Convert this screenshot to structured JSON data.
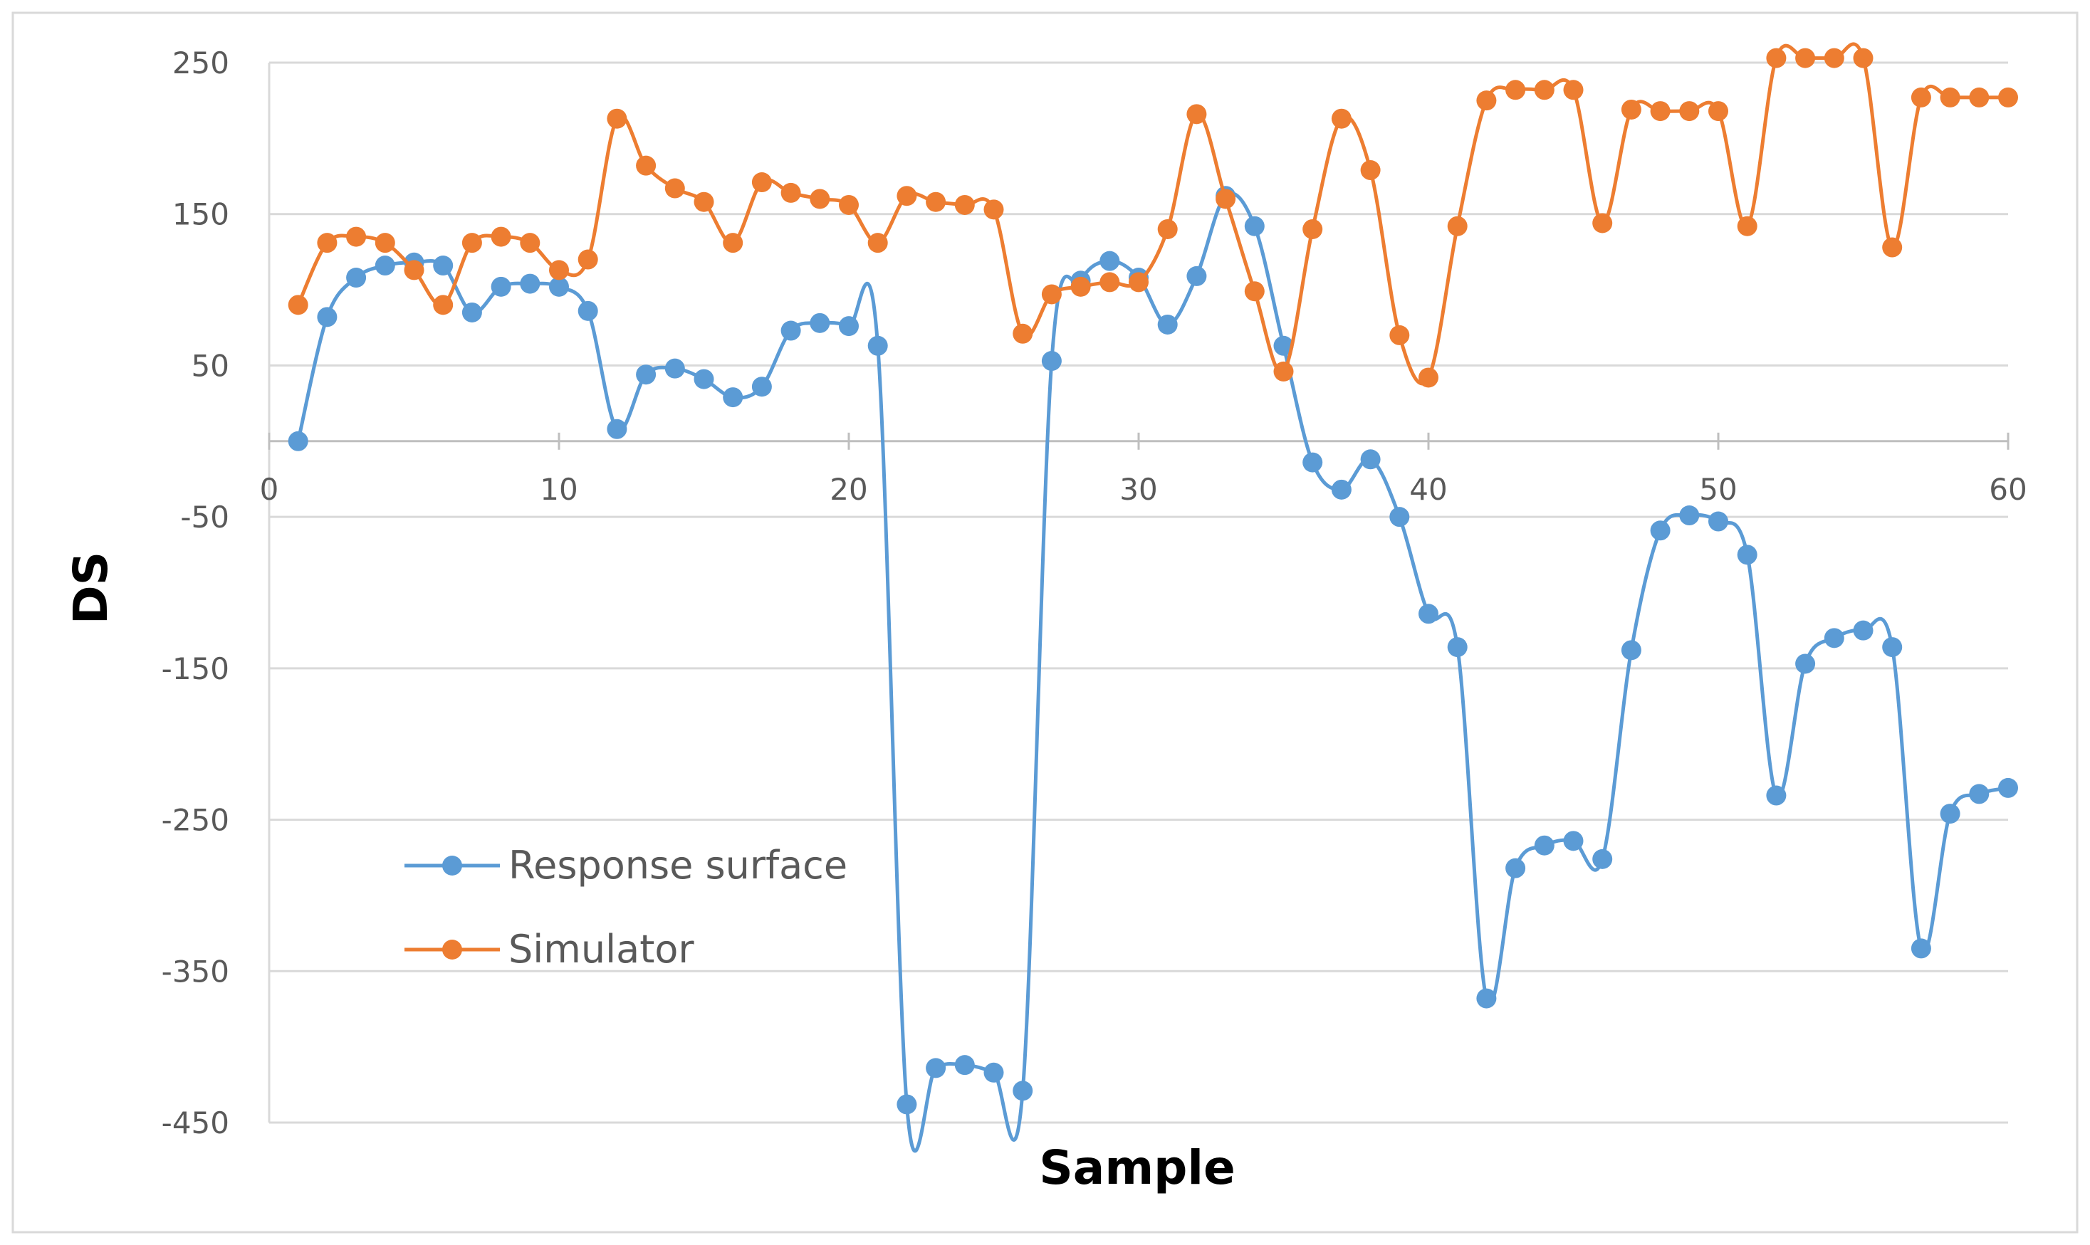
{
  "chart_data": {
    "type": "line",
    "title": "",
    "xlabel": "Sample",
    "ylabel": "DS",
    "xlim": [
      0,
      60
    ],
    "ylim": [
      -450,
      250
    ],
    "x_ticks": [
      "0",
      "10",
      "20",
      "30",
      "40",
      "50",
      "60"
    ],
    "y_ticks": [
      "250",
      "150",
      "50",
      "-50",
      "-150",
      "-250",
      "-350",
      "-450"
    ],
    "grid": "horizontal",
    "legend_position": "lower-left inside plot",
    "x": [
      1,
      2,
      3,
      4,
      5,
      6,
      7,
      8,
      9,
      10,
      11,
      12,
      13,
      14,
      15,
      16,
      17,
      18,
      19,
      20,
      21,
      22,
      23,
      24,
      25,
      26,
      27,
      28,
      29,
      30,
      31,
      32,
      33,
      34,
      35,
      36,
      37,
      38,
      39,
      40,
      41,
      42,
      43,
      44,
      45,
      46,
      47,
      48,
      49,
      50,
      51,
      52,
      53,
      54,
      55,
      56,
      57,
      58,
      59,
      60
    ],
    "series": [
      {
        "name": "Response surface",
        "color": "#5b9bd5",
        "values": [
          0,
          82,
          108,
          116,
          118,
          116,
          85,
          102,
          104,
          102,
          86,
          8,
          44,
          48,
          41,
          29,
          36,
          73,
          78,
          76,
          63,
          -438,
          -414,
          -412,
          -417,
          -429,
          53,
          106,
          119,
          108,
          77,
          109,
          162,
          142,
          63,
          -14,
          -32,
          -12,
          -50,
          -114,
          -136,
          -368,
          -282,
          -267,
          -264,
          -276,
          -138,
          -59,
          -49,
          -53,
          -75,
          -234,
          -147,
          -130,
          -125,
          -136,
          -335,
          -246,
          -233,
          -229
        ]
      },
      {
        "name": "Simulator",
        "color": "#ed7d31",
        "values": [
          90,
          131,
          135,
          131,
          113,
          90,
          131,
          135,
          131,
          113,
          120,
          213,
          182,
          167,
          158,
          131,
          171,
          164,
          160,
          156,
          131,
          162,
          158,
          156,
          153,
          71,
          97,
          102,
          105,
          105,
          140,
          216,
          160,
          99,
          46,
          140,
          213,
          179,
          70,
          42,
          142,
          225,
          232,
          232,
          232,
          144,
          219,
          218,
          218,
          218,
          142,
          253,
          253,
          253,
          253,
          128,
          227,
          227,
          227,
          227
        ]
      }
    ]
  }
}
